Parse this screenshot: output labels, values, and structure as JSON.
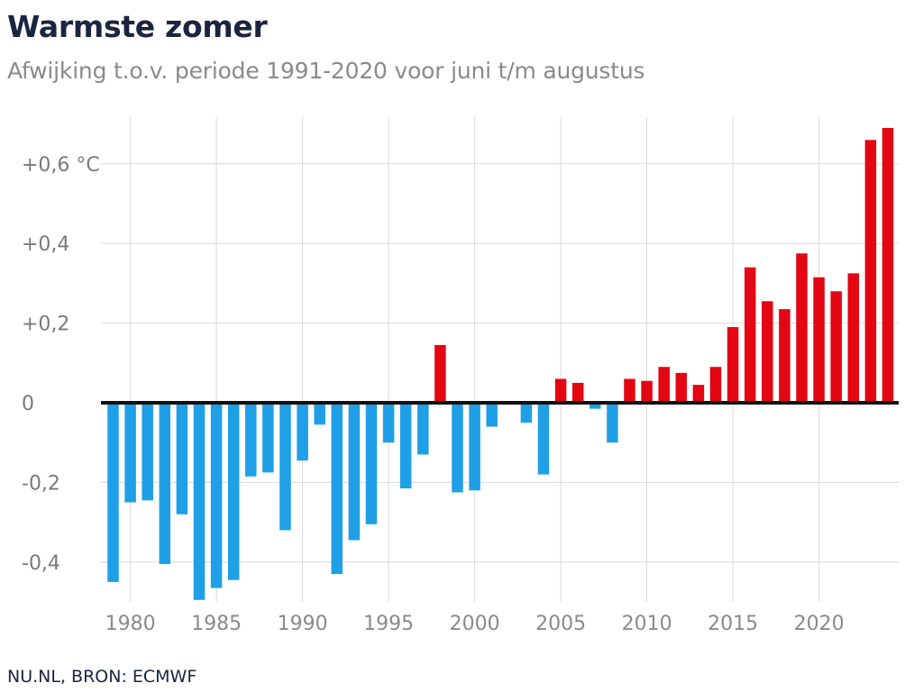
{
  "title": "Warmste zomer",
  "subtitle": "Afwijking t.o.v. periode 1991-2020 voor juni t/m augustus",
  "source": "NU.NL, BRON: ECMWF",
  "colors": {
    "positive": "#e30613",
    "negative": "#1f9fe6",
    "baseline": "#111111",
    "grid": "#d9d9d9"
  },
  "chart_data": {
    "type": "bar",
    "title": "Warmste zomer",
    "subtitle": "Afwijking t.o.v. periode 1991-2020 voor juni t/m augustus",
    "xlabel": "",
    "ylabel": "",
    "unit": "°C",
    "xlim": [
      1979,
      2024
    ],
    "ylim": [
      -0.5,
      0.7
    ],
    "grid": true,
    "x_ticks": [
      1980,
      1985,
      1990,
      1995,
      2000,
      2005,
      2010,
      2015,
      2020
    ],
    "x_tick_labels": [
      "1980",
      "1985",
      "1990",
      "1995",
      "2000",
      "2005",
      "2010",
      "2015",
      "2020"
    ],
    "y_ticks": [
      0.6,
      0.4,
      0.2,
      0,
      -0.2,
      -0.4
    ],
    "y_tick_labels": [
      "+0,6 °C",
      "+0,4",
      "+0,2",
      "0",
      "-0,2",
      "-0,4"
    ],
    "x": [
      1979,
      1980,
      1981,
      1982,
      1983,
      1984,
      1985,
      1986,
      1987,
      1988,
      1989,
      1990,
      1991,
      1992,
      1993,
      1994,
      1995,
      1996,
      1997,
      1998,
      1999,
      2000,
      2001,
      2002,
      2003,
      2004,
      2005,
      2006,
      2007,
      2008,
      2009,
      2010,
      2011,
      2012,
      2013,
      2014,
      2015,
      2016,
      2017,
      2018,
      2019,
      2020,
      2021,
      2022,
      2023,
      2024
    ],
    "values": [
      -0.45,
      -0.25,
      -0.245,
      -0.405,
      -0.28,
      -0.495,
      -0.465,
      -0.445,
      -0.185,
      -0.175,
      -0.32,
      -0.145,
      -0.055,
      -0.43,
      -0.345,
      -0.305,
      -0.1,
      -0.215,
      -0.13,
      0.145,
      -0.225,
      -0.22,
      -0.06,
      0,
      -0.05,
      -0.18,
      0.06,
      0.05,
      -0.015,
      -0.1,
      0.06,
      0.055,
      0.09,
      0.075,
      0.045,
      0.09,
      0.19,
      0.34,
      0.255,
      0.235,
      0.375,
      0.315,
      0.28,
      0.325,
      0.66,
      0.69
    ]
  }
}
